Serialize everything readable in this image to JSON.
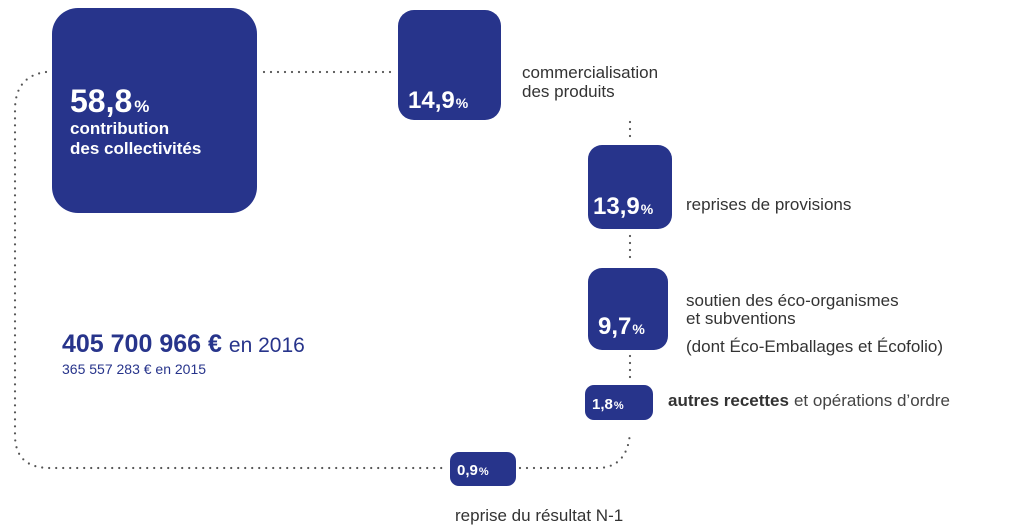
{
  "nodes": [
    {
      "value": "58,8",
      "unit": "%",
      "label": [
        "contribution",
        "des collectivités"
      ]
    },
    {
      "value": "14,9",
      "unit": "%",
      "label": [
        "commercialisation",
        "des produits"
      ]
    },
    {
      "value": "13,9",
      "unit": "%",
      "label": [
        "reprises de provisions"
      ]
    },
    {
      "value": "9,7",
      "unit": "%",
      "label": [
        "soutien des éco-organismes",
        "et subventions"
      ],
      "note": "(dont Éco-Emballages et Écofolio)"
    },
    {
      "value": "1,8",
      "unit": "%",
      "label": [
        "autres recettes"
      ],
      "label_suffix": "et opérations d’ordre"
    },
    {
      "value": "0,9",
      "unit": "%",
      "label": [
        "reprise du résultat N-1"
      ]
    }
  ],
  "total": {
    "amount": "405 700 966 €",
    "year": "en 2016",
    "previous": "365 557 283 € en 2015"
  }
}
